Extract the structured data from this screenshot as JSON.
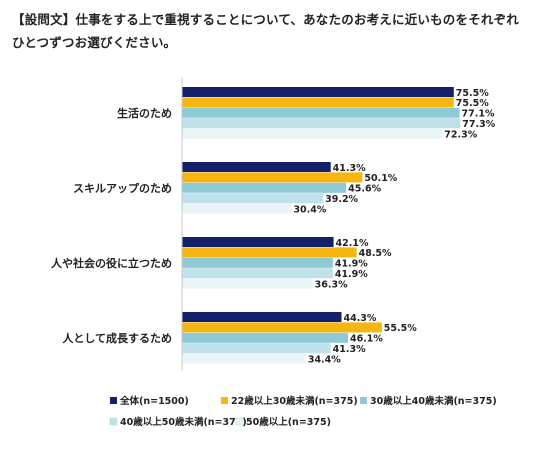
{
  "question": "【設問文】仕事をする上で重視することについて、あなたのお考えに近いものをそれぞれ\nひとつずつお選びください。",
  "chart_data": {
    "type": "bar",
    "orientation": "horizontal",
    "categories": [
      "生活のため",
      "スキルアップのため",
      "人や社会の役に立つため",
      "人として成長するため"
    ],
    "series": [
      {
        "name": "全体(n=1500)",
        "color": "#13206b",
        "values": [
          75.5,
          41.3,
          42.1,
          44.3
        ]
      },
      {
        "name": "22歳以上30歳未満(n=375)",
        "color": "#f7b50f",
        "values": [
          75.5,
          50.1,
          48.5,
          55.5
        ]
      },
      {
        "name": "30歳以上40歳未満(n=375)",
        "color": "#8ecad6",
        "values": [
          77.1,
          45.6,
          41.9,
          46.1
        ]
      },
      {
        "name": "40歳以上50歳未満(n=375)",
        "color": "#bfe1ea",
        "values": [
          77.3,
          39.2,
          41.9,
          41.3
        ]
      },
      {
        "name": "50歳以上(n=375)",
        "color": "#e9f4f7",
        "values": [
          72.3,
          30.4,
          36.3,
          34.4
        ]
      }
    ],
    "value_suffix": "%",
    "legend_position": "bottom"
  }
}
